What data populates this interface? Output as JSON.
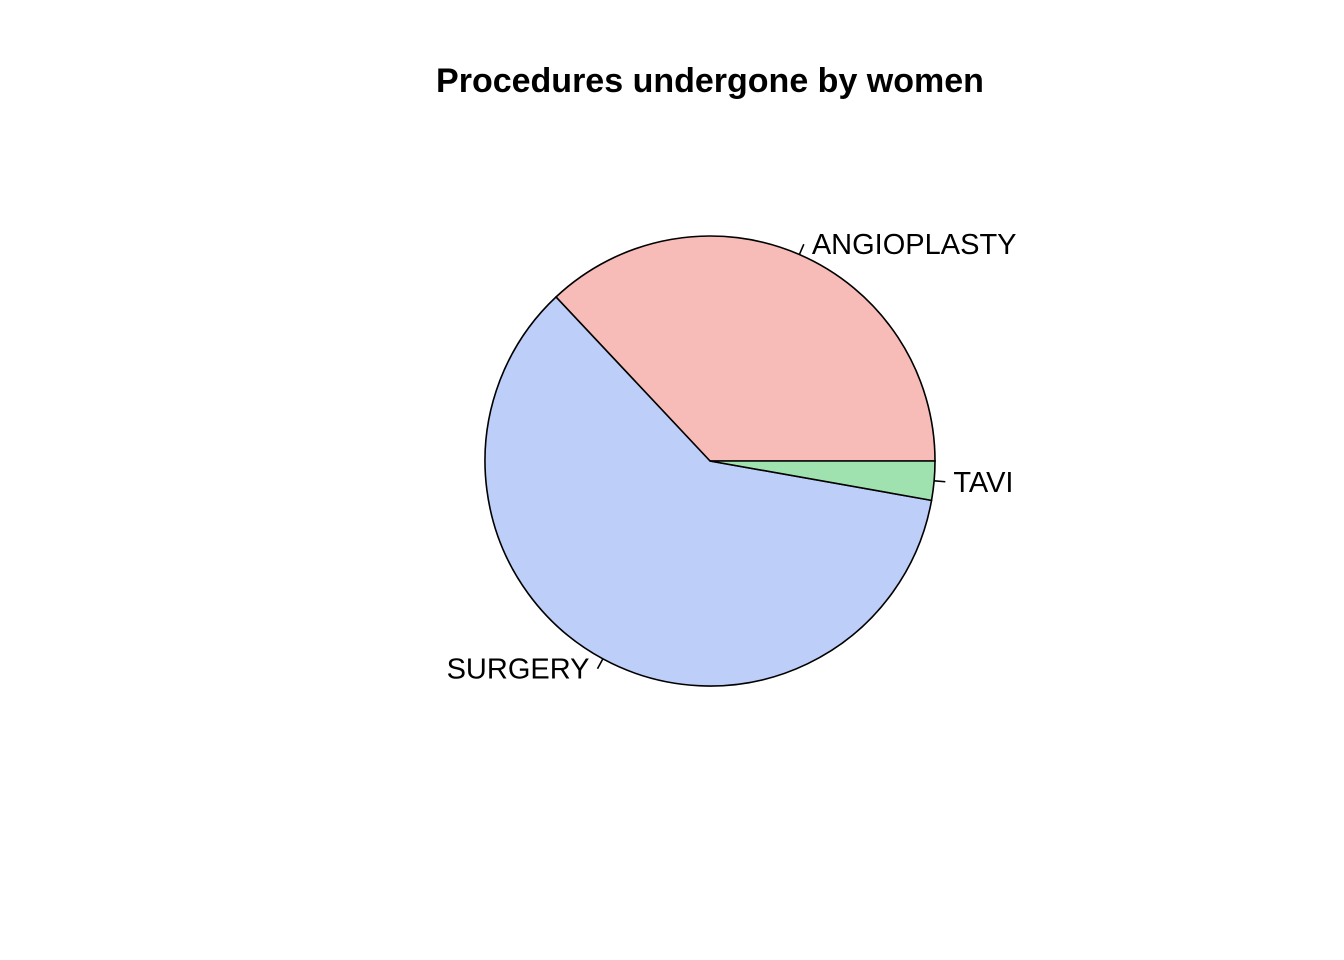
{
  "chart_data": {
    "type": "pie",
    "title": "Procedures undergone by women",
    "start_angle_deg": 0,
    "direction": "counterclockwise",
    "slices": [
      {
        "label": "ANGIOPLASTY",
        "value": 37.0,
        "color": "#F8BCB8"
      },
      {
        "label": "SURGERY",
        "value": 60.2,
        "color": "#BDCEF8"
      },
      {
        "label": "TAVI",
        "value": 2.8,
        "color": "#A0E1B0"
      }
    ],
    "legend": "none",
    "border_color": "#000000"
  }
}
